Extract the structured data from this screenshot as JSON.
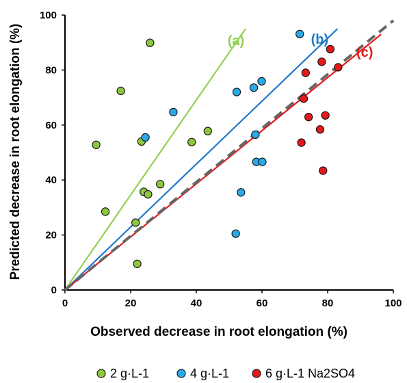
{
  "chart_data": {
    "type": "scatter",
    "xlabel": "Observed decrease in root elongation (%)",
    "ylabel": "Predicted decrease in root elongation (%)",
    "xlim": [
      0,
      100
    ],
    "ylim": [
      0,
      100
    ],
    "x_ticks": [
      "0",
      "20",
      "40",
      "60",
      "80",
      "100"
    ],
    "y_ticks": [
      "0",
      "20",
      "40",
      "60",
      "80",
      "100"
    ],
    "grid": false,
    "legend_position": "bottom",
    "series": [
      {
        "name": "2 g·L-1",
        "color": "#8DC63F",
        "points": [
          {
            "x": 9.5,
            "y": 52.8
          },
          {
            "x": 12.3,
            "y": 28.5
          },
          {
            "x": 17,
            "y": 72.4
          },
          {
            "x": 21.5,
            "y": 24.5
          },
          {
            "x": 22,
            "y": 9.5
          },
          {
            "x": 23.3,
            "y": 54
          },
          {
            "x": 24,
            "y": 35.7
          },
          {
            "x": 25.3,
            "y": 34.8
          },
          {
            "x": 25.9,
            "y": 89.9
          },
          {
            "x": 29,
            "y": 38.5
          },
          {
            "x": 38.6,
            "y": 53.8
          },
          {
            "x": 43.5,
            "y": 57.8
          }
        ]
      },
      {
        "name": "4 g·L-1",
        "color": "#29A9E8",
        "points": [
          {
            "x": 24.5,
            "y": 55.5
          },
          {
            "x": 33,
            "y": 64.7
          },
          {
            "x": 52,
            "y": 20.5
          },
          {
            "x": 52.3,
            "y": 72
          },
          {
            "x": 53.6,
            "y": 35.5
          },
          {
            "x": 57.5,
            "y": 73.6
          },
          {
            "x": 58,
            "y": 56.5
          },
          {
            "x": 58.3,
            "y": 46.6
          },
          {
            "x": 59.9,
            "y": 75.9
          },
          {
            "x": 60.1,
            "y": 46.6
          },
          {
            "x": 71.5,
            "y": 93.1
          }
        ]
      },
      {
        "name": "6 g·L-1 Na2SO4",
        "color": "#E31A1C",
        "points": [
          {
            "x": 72,
            "y": 53.6
          },
          {
            "x": 72.7,
            "y": 69.6
          },
          {
            "x": 73.3,
            "y": 79
          },
          {
            "x": 74.2,
            "y": 62.9
          },
          {
            "x": 77.7,
            "y": 58.4
          },
          {
            "x": 78.2,
            "y": 83
          },
          {
            "x": 78.6,
            "y": 43.4
          },
          {
            "x": 79.3,
            "y": 63.5
          },
          {
            "x": 80.8,
            "y": 87.6
          },
          {
            "x": 83.2,
            "y": 81
          }
        ]
      }
    ],
    "reference_lines": [
      {
        "label": "(a)",
        "color": "#92D050",
        "style": "solid",
        "x": [
          0,
          55
        ],
        "y": [
          0,
          95
        ]
      },
      {
        "label": "(b)",
        "color": "#1F78C8",
        "style": "solid",
        "x": [
          0,
          83
        ],
        "y": [
          0,
          95
        ]
      },
      {
        "label": "(c)",
        "color": "#E31A1C",
        "style": "solid",
        "x": [
          0,
          96.3
        ],
        "y": [
          0,
          93
        ]
      },
      {
        "label": "",
        "color": "#666666",
        "style": "dashed",
        "x": [
          0,
          100
        ],
        "y": [
          0,
          98
        ]
      }
    ]
  }
}
